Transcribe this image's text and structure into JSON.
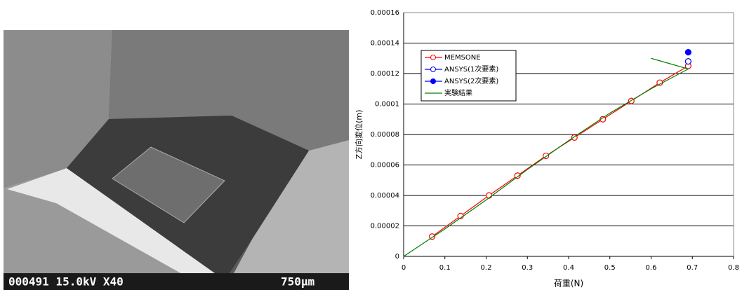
{
  "image": {
    "caption": "000491 15.0kV X40",
    "scale": "750μm"
  },
  "chart_data": {
    "type": "line",
    "x_label": "荷重(N)",
    "y_label": "Z方向変位(m)",
    "xlim": [
      0,
      0.8
    ],
    "xticks": [
      0,
      0.1,
      0.2,
      0.3,
      0.4,
      0.5,
      0.6,
      0.7,
      0.8
    ],
    "ylim": [
      0,
      0.00016
    ],
    "yticks": [
      0,
      2e-05,
      4e-05,
      6e-05,
      8e-05,
      0.0001,
      0.00012,
      0.00014,
      0.00016
    ],
    "grid": true,
    "legend": "upper left",
    "series": [
      {
        "name": "MEMSONE",
        "color": "#ff0000",
        "marker": "open-circle",
        "x": [
          0.069,
          0.138,
          0.207,
          0.276,
          0.345,
          0.414,
          0.483,
          0.552,
          0.621,
          0.69
        ],
        "values": [
          1.3e-05,
          2.65e-05,
          4e-05,
          5.3e-05,
          6.6e-05,
          7.8e-05,
          9e-05,
          0.000102,
          0.000114,
          0.000125
        ]
      },
      {
        "name": "ANSYS(1次要素)",
        "color": "#0000ff",
        "marker": "open-circle",
        "x": [
          0.69
        ],
        "values": [
          0.000128
        ]
      },
      {
        "name": "ANSYS(2次要素)",
        "color": "#0000ff",
        "marker": "filled-circle",
        "x": [
          0.69
        ],
        "values": [
          0.000134
        ]
      },
      {
        "name": "実験結果",
        "color": "#008000",
        "marker": "none",
        "x": [
          0,
          0.1,
          0.2,
          0.3,
          0.4,
          0.5,
          0.6,
          0.69,
          0.6
        ],
        "values": [
          0,
          1.8e-05,
          3.7e-05,
          5.7e-05,
          7.6e-05,
          9.4e-05,
          0.00011,
          0.000123,
          0.00013
        ]
      }
    ]
  }
}
